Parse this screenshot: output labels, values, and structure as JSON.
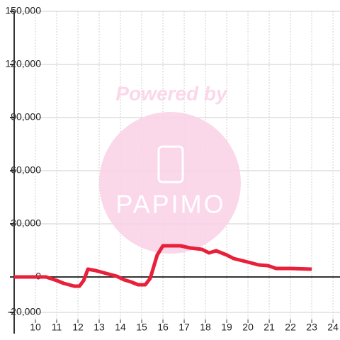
{
  "chart_data": {
    "type": "line",
    "watermark": {
      "text": "Powered by",
      "logo": "PAPIMO"
    },
    "x": [
      9,
      10.5,
      11,
      11.33,
      11.83,
      12.07,
      12.27,
      12.47,
      12.83,
      13.33,
      13.83,
      14.17,
      14.5,
      14.83,
      15.17,
      15.4,
      15.73,
      16,
      16.83,
      17.27,
      17.83,
      18.17,
      18.5,
      19,
      19.33,
      20,
      20.5,
      20.93,
      21.33,
      22,
      23
    ],
    "series": [
      {
        "color": "#e8203a",
        "values": [
          0,
          0,
          -2000,
          -3600,
          -5200,
          -5200,
          -2000,
          4400,
          3600,
          2000,
          400,
          -1600,
          -2800,
          -4400,
          -4400,
          -800,
          12400,
          17600,
          17600,
          16400,
          15600,
          13600,
          14800,
          12400,
          10400,
          8400,
          6800,
          6400,
          4800,
          4800,
          4400
        ]
      }
    ],
    "xlim": [
      9,
      24.33
    ],
    "xticks": [
      10,
      11,
      12,
      13,
      14,
      15,
      16,
      17,
      18,
      19,
      20,
      21,
      22,
      23,
      24
    ],
    "ylim": [
      -24000,
      150000
    ],
    "yticks": [
      {
        "value": -20000,
        "label": "-20,000"
      },
      {
        "value": 0,
        "label": "0"
      },
      {
        "value": 30000,
        "label": "30,000"
      },
      {
        "value": 60000,
        "label": "60,000"
      },
      {
        "value": 90000,
        "label": "90,000"
      },
      {
        "value": 120000,
        "label": "120,000"
      },
      {
        "value": 150000,
        "label": "150,000"
      }
    ],
    "grid": true
  }
}
